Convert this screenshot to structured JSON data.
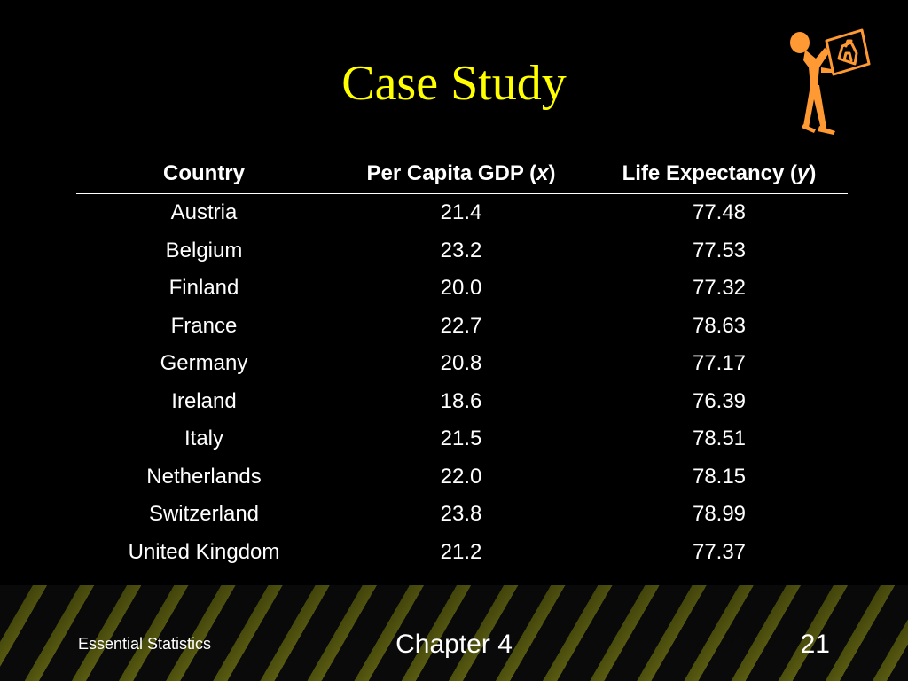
{
  "slide": {
    "title": "Case Study"
  },
  "table": {
    "headers": {
      "country": "Country",
      "gdp_prefix": "Per Capita GDP (",
      "gdp_var": "x",
      "gdp_suffix": ")",
      "life_prefix": "Life Expectancy (",
      "life_var": "y",
      "life_suffix": ")"
    },
    "rows": [
      {
        "country": "Austria",
        "gdp": "21.4",
        "life": "77.48"
      },
      {
        "country": "Belgium",
        "gdp": "23.2",
        "life": "77.53"
      },
      {
        "country": "Finland",
        "gdp": "20.0",
        "life": "77.32"
      },
      {
        "country": "France",
        "gdp": "22.7",
        "life": "78.63"
      },
      {
        "country": "Germany",
        "gdp": "20.8",
        "life": "77.17"
      },
      {
        "country": "Ireland",
        "gdp": "18.6",
        "life": "76.39"
      },
      {
        "country": "Italy",
        "gdp": "21.5",
        "life": "78.51"
      },
      {
        "country": "Netherlands",
        "gdp": "22.0",
        "life": "78.15"
      },
      {
        "country": "Switzerland",
        "gdp": "23.8",
        "life": "78.99"
      },
      {
        "country": "United Kingdom",
        "gdp": "21.2",
        "life": "77.37"
      }
    ]
  },
  "footer": {
    "left": "Essential Statistics",
    "center": "Chapter 4",
    "page": "21"
  },
  "colors": {
    "background": "#000000",
    "title": "#ffff00",
    "text": "#ffffff",
    "figure": "#ff9933"
  },
  "icons": {
    "figure": "person-holding-house-sign-icon"
  }
}
